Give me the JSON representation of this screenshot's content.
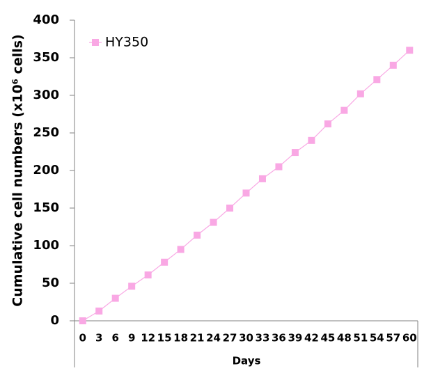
{
  "chart_data": {
    "type": "line",
    "x_label": "Days",
    "y_label": "Cumulative cell numbers (x10⁶ cells)",
    "categories": [
      "0",
      "3",
      "6",
      "9",
      "12",
      "15",
      "18",
      "21",
      "24",
      "27",
      "30",
      "33",
      "36",
      "39",
      "42",
      "45",
      "48",
      "51",
      "54",
      "57",
      "60"
    ],
    "series": [
      {
        "name": "HY350",
        "color": "#f9a8e4",
        "values": [
          0,
          13,
          30,
          46,
          61,
          78,
          95,
          114,
          131,
          150,
          170,
          189,
          205,
          224,
          240,
          262,
          280,
          302,
          321,
          340,
          360
        ]
      }
    ],
    "ylim": [
      0,
      400
    ],
    "yticks": [
      0,
      50,
      100,
      150,
      200,
      250,
      300,
      350,
      400
    ],
    "legend": "top-left",
    "grid": false
  }
}
